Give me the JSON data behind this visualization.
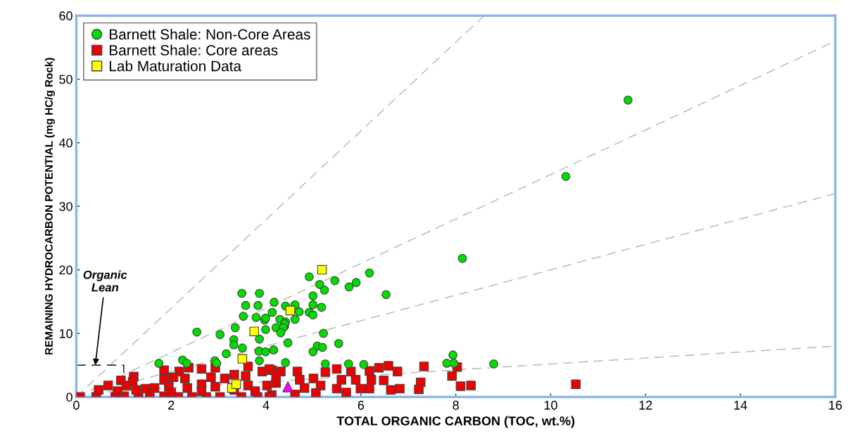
{
  "chart_data": {
    "type": "scatter",
    "xlabel": "TOTAL ORGANIC CARBON (TOC, wt.%)",
    "ylabel": "REMAINING HYDROCARBON POTENTIAL (mg HC/g Rock)",
    "xlim": [
      0,
      16
    ],
    "ylim": [
      0,
      60
    ],
    "xticks": [
      0,
      2,
      4,
      6,
      8,
      10,
      12,
      14,
      16
    ],
    "yticks": [
      0,
      10,
      20,
      30,
      40,
      50,
      60
    ],
    "grid": false,
    "legend": "top left",
    "annotations": [
      {
        "text": "Organic\nLean",
        "x": 0.4,
        "y": 5
      }
    ],
    "series": [
      {
        "type": "line",
        "color": "#c0c0c0",
        "line_style": "dashed",
        "marker": "none",
        "x": [
          0,
          8.6
        ],
        "values": [
          0,
          60
        ]
      },
      {
        "type": "line",
        "color": "#c0c0c0",
        "line_style": "dashed",
        "marker": "none",
        "x": [
          0,
          16
        ],
        "values": [
          0,
          56
        ]
      },
      {
        "type": "line",
        "color": "#c0c0c0",
        "line_style": "dashed",
        "marker": "none",
        "x": [
          0,
          16
        ],
        "values": [
          0,
          32
        ]
      },
      {
        "type": "line",
        "color": "#c0c0c0",
        "line_style": "dashed",
        "marker": "none",
        "x": [
          0,
          16
        ],
        "values": [
          0.5,
          8
        ]
      },
      {
        "type": "line",
        "color": "#333333",
        "line_style": "dashed",
        "marker": "none",
        "x": [
          0,
          1,
          1
        ],
        "values": [
          5,
          5,
          0
        ]
      },
      {
        "name": "Barnett Shale: Core areas",
        "type": "scatter",
        "color": "#ee0000",
        "marker": "square",
        "x": [
          6.77,
          7.33,
          7.26,
          7.22,
          6.82,
          7.92,
          8.03,
          8.1,
          8.32,
          10.53,
          6.58,
          6.38,
          6.18,
          6.22,
          6.48,
          6.63,
          6.18,
          5.99,
          5.89,
          5.79,
          5.49,
          5.25,
          5.59,
          5.0,
          5.49,
          4.81,
          5.15,
          4.66,
          4.31,
          4.12,
          4.21,
          4.71,
          4.12,
          4.61,
          5.05,
          5.69,
          0.08,
          0.42,
          0.82,
          1.01,
          1.31,
          1.55,
          1.85,
          2.15,
          2.44,
          2.74,
          3.03,
          3.48,
          3.82,
          4.07,
          0.67,
          0.94,
          1.21,
          1.19,
          1.06,
          0.47,
          1.46,
          1.85,
          2.17,
          2.37,
          1.85,
          2.05,
          2.29,
          2.64,
          2.93,
          2.84,
          3.13,
          3.33,
          3.62,
          3.57,
          3.92,
          4.07,
          4.21,
          2.64,
          2.34,
          1.95,
          2.93,
          3.62,
          4.02,
          1.65,
          1.26,
          0.87,
          3.33,
          3.77,
          2.64,
          2.0
        ],
        "values": [
          4.0,
          4.8,
          2.3,
          1.2,
          1.3,
          3.3,
          4.7,
          1.7,
          1.8,
          2.0,
          4.9,
          4.6,
          4.1,
          2.7,
          2.6,
          1.1,
          1.3,
          1.3,
          2.7,
          4.0,
          4.4,
          3.9,
          2.7,
          2.9,
          1.3,
          1.4,
          1.8,
          4.0,
          4.0,
          4.2,
          2.2,
          2.7,
          0.3,
          0.4,
          0.6,
          0.7,
          0.0,
          0.0,
          0.0,
          0.1,
          0.1,
          0.1,
          0.1,
          0.0,
          0.0,
          0.0,
          0.0,
          0.0,
          0.0,
          0.0,
          1.8,
          2.6,
          3.2,
          2.4,
          1.8,
          1.1,
          1.3,
          4.2,
          4.0,
          4.6,
          2.7,
          3.1,
          2.9,
          4.4,
          4.6,
          3.1,
          2.9,
          3.5,
          4.8,
          3.3,
          4.0,
          4.4,
          3.3,
          2.0,
          1.4,
          1.6,
          1.6,
          1.8,
          1.8,
          1.4,
          1.1,
          0.9,
          1.1,
          0.9,
          0.9,
          0.7
        ]
      },
      {
        "name": "Barnett Shale: Non-Core Areas",
        "type": "scatter",
        "color": "#00dd00",
        "marker": "circle",
        "x": [
          11.63,
          10.32,
          8.14,
          8.8,
          7.94,
          7.81,
          7.96,
          4.91,
          5.13,
          5.23,
          5.45,
          5.75,
          5.9,
          6.18,
          4.99,
          3.49,
          3.86,
          3.57,
          3.83,
          4.17,
          4.41,
          4.61,
          4.99,
          5.17,
          4.91,
          4.99,
          3.52,
          3.79,
          3.97,
          4.13,
          4.29,
          4.41,
          4.61,
          4.7,
          4.39,
          4.21,
          3.99,
          3.35,
          2.54,
          3.03,
          5.21,
          6.53,
          3.32,
          3.32,
          3.5,
          3.86,
          3.85,
          3.99,
          4.16,
          3.86,
          3.16,
          1.74,
          2.24,
          2.33,
          2.92,
          2.96,
          3.99,
          4.39,
          4.36,
          4.31,
          4.46,
          5.08,
          5.19,
          4.99,
          5.53,
          4.41,
          5.25,
          5.74,
          6.06
        ],
        "values": [
          46.7,
          34.7,
          21.8,
          5.2,
          6.6,
          5.3,
          5.3,
          18.9,
          17.7,
          16.8,
          18.3,
          17.3,
          18.0,
          19.5,
          15.9,
          16.3,
          16.3,
          14.4,
          14.4,
          14.9,
          14.3,
          14.5,
          14.5,
          14.1,
          13.3,
          12.9,
          12.7,
          12.5,
          12.1,
          13.3,
          12.2,
          11.8,
          12.2,
          13.4,
          11.1,
          10.9,
          10.6,
          10.9,
          10.2,
          9.8,
          10.0,
          16.1,
          9.0,
          8.2,
          7.7,
          9.1,
          7.2,
          7.1,
          7.4,
          5.7,
          6.8,
          5.3,
          5.8,
          5.3,
          5.7,
          5.3,
          12.4,
          11.5,
          10.9,
          10.1,
          8.5,
          8.0,
          7.8,
          7.1,
          8.4,
          5.4,
          5.2,
          5.2,
          5.1
        ]
      },
      {
        "name": "Lab Maturation Data",
        "type": "scatter",
        "color": "#ffff00",
        "marker": "square",
        "x": [
          5.18,
          4.51,
          3.75,
          3.5,
          3.28,
          3.37
        ],
        "values": [
          20.0,
          13.6,
          10.3,
          6.0,
          1.4,
          2.0
        ]
      },
      {
        "type": "scatter",
        "color": "#ff00ff",
        "marker": "triangle",
        "x": [
          4.46
        ],
        "values": [
          1.6
        ]
      }
    ]
  }
}
